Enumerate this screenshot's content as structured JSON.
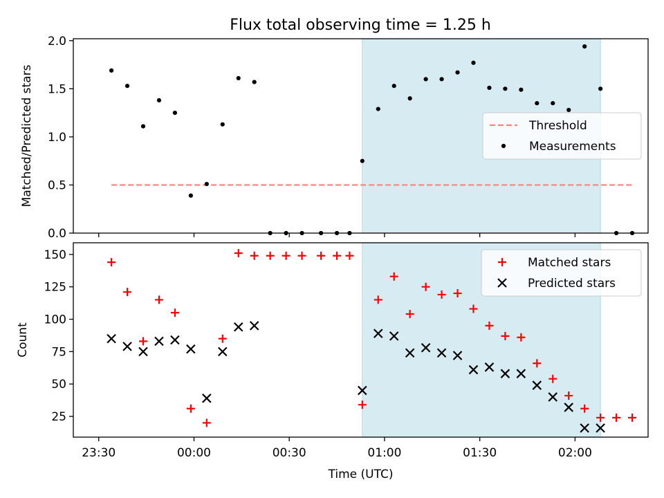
{
  "title": "Flux total observing time = 1.25 h",
  "colors": {
    "threshold": "#ff7f7f",
    "measurement": "#000000",
    "matched": "#ff0000",
    "predicted": "#000000",
    "highlight": "#add8e6"
  },
  "chart_data": [
    {
      "type": "scatter",
      "ylabel": "Matched/Predicted stars",
      "ylim": [
        0,
        2.02
      ],
      "yticks": [
        "0.0",
        "0.5",
        "1.0",
        "1.5",
        "2.0"
      ],
      "xlim_minutes": [
        -8,
        173
      ],
      "highlight_span": [
        "00:53",
        "02:08"
      ],
      "legend": {
        "placement": "center-right",
        "entries": [
          "Threshold",
          "Measurements"
        ]
      },
      "series": [
        {
          "name": "Threshold",
          "style": "dashed-line",
          "points": [
            [
              "23:34",
              0.5
            ],
            [
              "02:18",
              0.5
            ]
          ]
        },
        {
          "name": "Measurements",
          "style": "dot",
          "points": [
            [
              "23:34",
              1.69
            ],
            [
              "23:39",
              1.53
            ],
            [
              "23:44",
              1.11
            ],
            [
              "23:49",
              1.38
            ],
            [
              "23:54",
              1.25
            ],
            [
              "23:59",
              0.39
            ],
            [
              "00:04",
              0.51
            ],
            [
              "00:09",
              1.13
            ],
            [
              "00:14",
              1.61
            ],
            [
              "00:19",
              1.57
            ],
            [
              "00:24",
              0.0
            ],
            [
              "00:29",
              0.0
            ],
            [
              "00:34",
              0.0
            ],
            [
              "00:40",
              0.0
            ],
            [
              "00:45",
              0.0
            ],
            [
              "00:49",
              0.0
            ],
            [
              "00:53",
              0.75
            ],
            [
              "00:58",
              1.29
            ],
            [
              "01:03",
              1.53
            ],
            [
              "01:08",
              1.4
            ],
            [
              "01:13",
              1.6
            ],
            [
              "01:18",
              1.6
            ],
            [
              "01:23",
              1.67
            ],
            [
              "01:28",
              1.77
            ],
            [
              "01:33",
              1.51
            ],
            [
              "01:38",
              1.5
            ],
            [
              "01:43",
              1.49
            ],
            [
              "01:48",
              1.35
            ],
            [
              "01:53",
              1.35
            ],
            [
              "01:58",
              1.28
            ],
            [
              "02:03",
              1.94
            ],
            [
              "02:08",
              1.5
            ],
            [
              "02:13",
              0.0
            ],
            [
              "02:18",
              0.0
            ]
          ]
        }
      ]
    },
    {
      "type": "scatter",
      "xlabel": "Time (UTC)",
      "ylabel": "Count",
      "ylim": [
        9,
        159
      ],
      "yticks": [
        "25",
        "50",
        "75",
        "100",
        "125",
        "150"
      ],
      "xticks": [
        "23:30",
        "00:00",
        "00:30",
        "01:00",
        "01:30",
        "02:00"
      ],
      "xlim_minutes": [
        -8,
        173
      ],
      "highlight_span": [
        "00:53",
        "02:08"
      ],
      "legend": {
        "placement": "top-right",
        "entries": [
          "Matched stars",
          "Predicted stars"
        ]
      },
      "series": [
        {
          "name": "Matched stars",
          "style": "plus",
          "points": [
            [
              "23:34",
              144
            ],
            [
              "23:39",
              121
            ],
            [
              "23:44",
              83
            ],
            [
              "23:49",
              115
            ],
            [
              "23:54",
              105
            ],
            [
              "23:59",
              31
            ],
            [
              "00:04",
              20
            ],
            [
              "00:09",
              85
            ],
            [
              "00:14",
              151
            ],
            [
              "00:19",
              149
            ],
            [
              "00:24",
              149
            ],
            [
              "00:29",
              149
            ],
            [
              "00:34",
              149
            ],
            [
              "00:40",
              149
            ],
            [
              "00:45",
              149
            ],
            [
              "00:49",
              149
            ],
            [
              "00:53",
              34
            ],
            [
              "00:58",
              115
            ],
            [
              "01:03",
              133
            ],
            [
              "01:08",
              104
            ],
            [
              "01:13",
              125
            ],
            [
              "01:18",
              119
            ],
            [
              "01:23",
              120
            ],
            [
              "01:28",
              108
            ],
            [
              "01:33",
              95
            ],
            [
              "01:38",
              87
            ],
            [
              "01:43",
              86
            ],
            [
              "01:48",
              66
            ],
            [
              "01:53",
              54
            ],
            [
              "01:58",
              41
            ],
            [
              "02:03",
              31
            ],
            [
              "02:08",
              24
            ],
            [
              "02:13",
              24
            ],
            [
              "02:18",
              24
            ]
          ]
        },
        {
          "name": "Predicted stars",
          "style": "x",
          "points": [
            [
              "23:34",
              85
            ],
            [
              "23:39",
              79
            ],
            [
              "23:44",
              75
            ],
            [
              "23:49",
              83
            ],
            [
              "23:54",
              84
            ],
            [
              "23:59",
              77
            ],
            [
              "00:04",
              39
            ],
            [
              "00:09",
              75
            ],
            [
              "00:14",
              94
            ],
            [
              "00:19",
              95
            ],
            [
              "00:53",
              45
            ],
            [
              "00:58",
              89
            ],
            [
              "01:03",
              87
            ],
            [
              "01:08",
              74
            ],
            [
              "01:13",
              78
            ],
            [
              "01:18",
              74
            ],
            [
              "01:23",
              72
            ],
            [
              "01:28",
              61
            ],
            [
              "01:33",
              63
            ],
            [
              "01:38",
              58
            ],
            [
              "01:43",
              58
            ],
            [
              "01:48",
              49
            ],
            [
              "01:53",
              40
            ],
            [
              "01:58",
              32
            ],
            [
              "02:03",
              16
            ],
            [
              "02:08",
              16
            ]
          ]
        }
      ]
    }
  ]
}
